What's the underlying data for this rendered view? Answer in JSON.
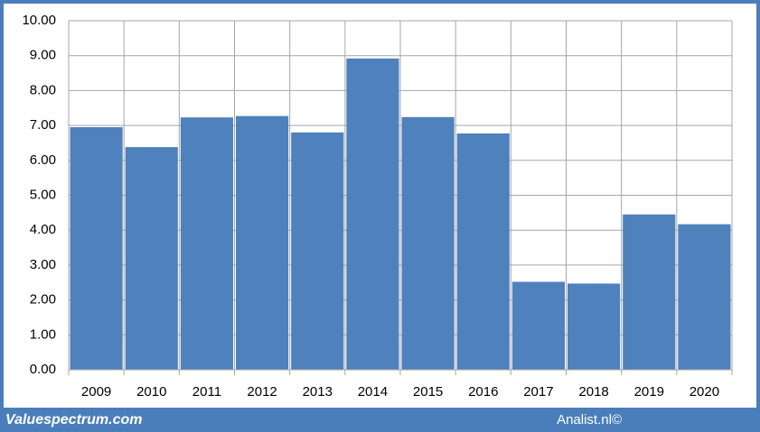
{
  "chart_data": {
    "type": "bar",
    "categories": [
      "2009",
      "2010",
      "2011",
      "2012",
      "2013",
      "2014",
      "2015",
      "2016",
      "2017",
      "2018",
      "2019",
      "2020"
    ],
    "values": [
      6.95,
      6.38,
      7.23,
      7.27,
      6.8,
      8.92,
      7.24,
      6.77,
      2.52,
      2.47,
      4.45,
      4.17
    ],
    "color": "#4f81bd",
    "ylim": [
      0,
      10
    ],
    "yticks": [
      {
        "value": 0,
        "label": "0.00"
      },
      {
        "value": 1,
        "label": "1.00"
      },
      {
        "value": 2,
        "label": "2.00"
      },
      {
        "value": 3,
        "label": "3.00"
      },
      {
        "value": 4,
        "label": "4.00"
      },
      {
        "value": 5,
        "label": "5.00"
      },
      {
        "value": 6,
        "label": "6.00"
      },
      {
        "value": 7,
        "label": "7.00"
      },
      {
        "value": 8,
        "label": "8.00"
      },
      {
        "value": 9,
        "label": "9.00"
      },
      {
        "value": 10,
        "label": "10.00"
      }
    ],
    "grid": true,
    "annotations": [
      "Valuespectrum.com",
      "Analist.nl©"
    ]
  }
}
